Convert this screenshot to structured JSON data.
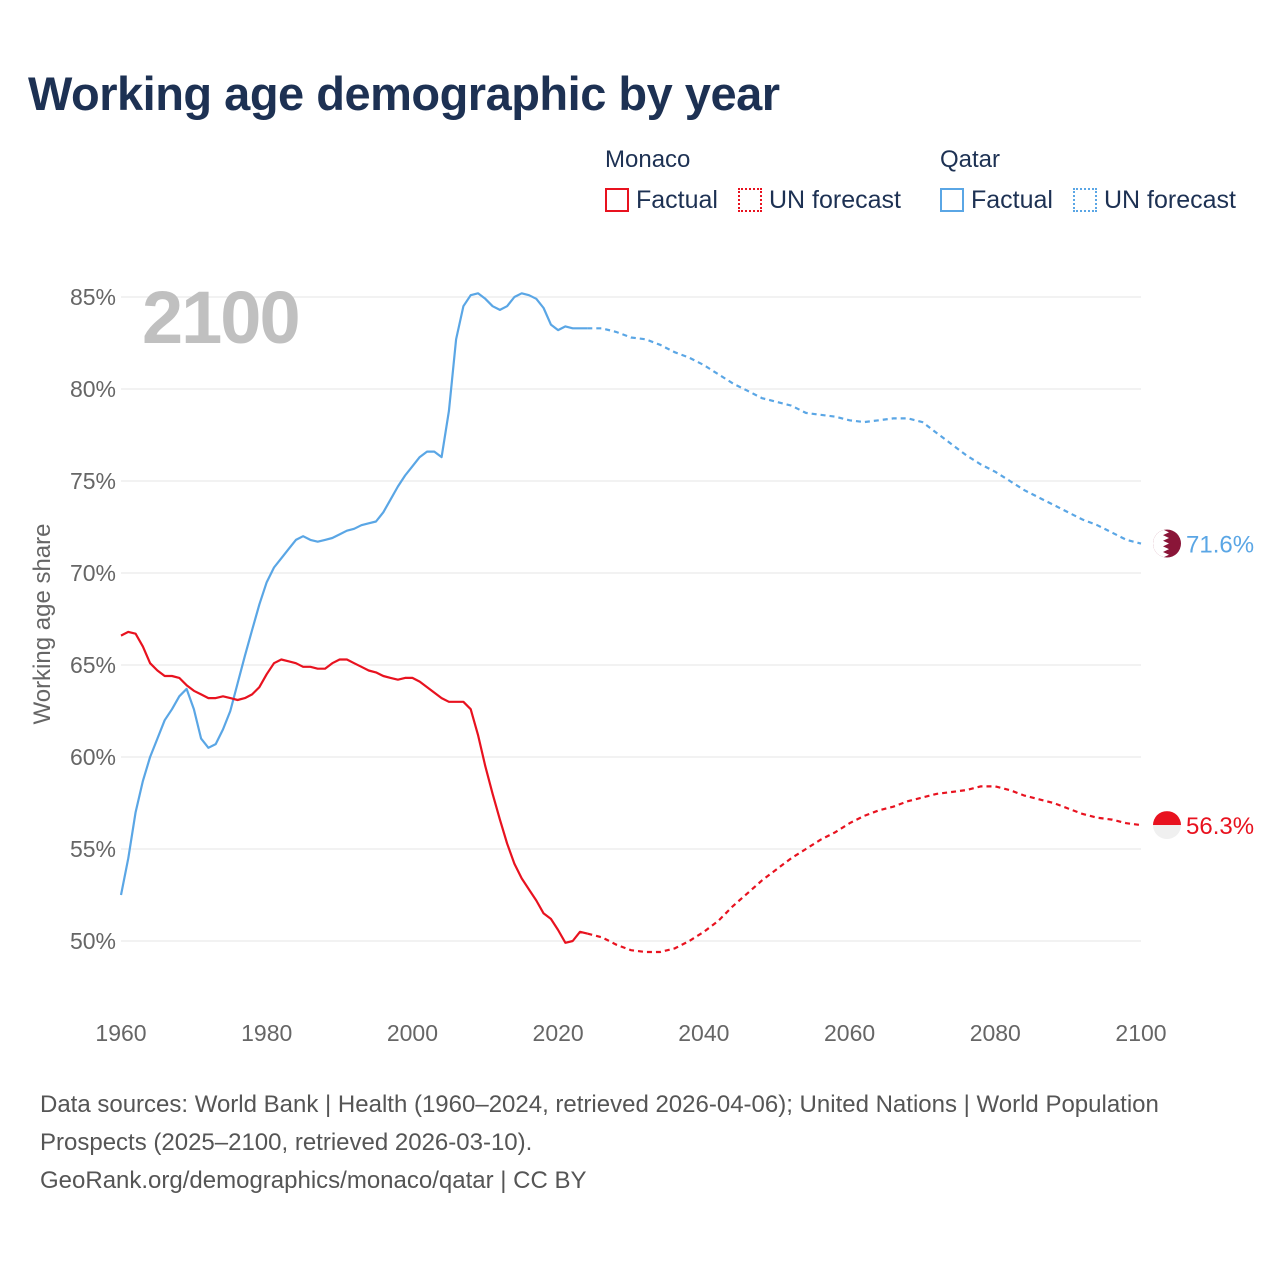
{
  "title": "Working age demographic by year",
  "year_watermark": "2100",
  "legend": {
    "groups": [
      {
        "name": "Monaco",
        "color": "#e8121f",
        "items": [
          "Factual",
          "UN forecast"
        ]
      },
      {
        "name": "Qatar",
        "color": "#5aa6e5",
        "items": [
          "Factual",
          "UN forecast"
        ]
      }
    ]
  },
  "footer": {
    "sources": "Data sources: World Bank | Health (1960–2024, retrieved 2026-04-06); United Nations | World Population Prospects (2025–2100, retrieved 2026-03-10).",
    "credit": "GeoRank.org/demographics/monaco/qatar | CC BY"
  },
  "chart_data": {
    "type": "line",
    "title": "Working age demographic by year",
    "xlabel": "",
    "ylabel": "Working age share",
    "xlim": [
      1960,
      2100
    ],
    "ylim": [
      48,
      86
    ],
    "x_ticks": [
      1960,
      1980,
      2000,
      2020,
      2040,
      2060,
      2080,
      2100
    ],
    "y_ticks": [
      50,
      55,
      60,
      65,
      70,
      75,
      80,
      85
    ],
    "y_tick_labels": [
      "50%",
      "55%",
      "60%",
      "65%",
      "70%",
      "75%",
      "80%",
      "85%"
    ],
    "grid": true,
    "series": [
      {
        "name": "Qatar",
        "color": "#5aa6e5",
        "end_label": "71.6%",
        "factual": [
          [
            1960,
            52.5
          ],
          [
            1961,
            54.5
          ],
          [
            1962,
            57.0
          ],
          [
            1963,
            58.7
          ],
          [
            1964,
            60.0
          ],
          [
            1965,
            61.0
          ],
          [
            1966,
            62.0
          ],
          [
            1967,
            62.6
          ],
          [
            1968,
            63.3
          ],
          [
            1969,
            63.7
          ],
          [
            1970,
            62.6
          ],
          [
            1971,
            61.0
          ],
          [
            1972,
            60.5
          ],
          [
            1973,
            60.7
          ],
          [
            1974,
            61.5
          ],
          [
            1975,
            62.5
          ],
          [
            1976,
            64.0
          ],
          [
            1977,
            65.5
          ],
          [
            1978,
            66.9
          ],
          [
            1979,
            68.3
          ],
          [
            1980,
            69.5
          ],
          [
            1981,
            70.3
          ],
          [
            1982,
            70.8
          ],
          [
            1983,
            71.3
          ],
          [
            1984,
            71.8
          ],
          [
            1985,
            72.0
          ],
          [
            1986,
            71.8
          ],
          [
            1987,
            71.7
          ],
          [
            1988,
            71.8
          ],
          [
            1989,
            71.9
          ],
          [
            1990,
            72.1
          ],
          [
            1991,
            72.3
          ],
          [
            1992,
            72.4
          ],
          [
            1993,
            72.6
          ],
          [
            1994,
            72.7
          ],
          [
            1995,
            72.8
          ],
          [
            1996,
            73.3
          ],
          [
            1997,
            74.0
          ],
          [
            1998,
            74.7
          ],
          [
            1999,
            75.3
          ],
          [
            2000,
            75.8
          ],
          [
            2001,
            76.3
          ],
          [
            2002,
            76.6
          ],
          [
            2003,
            76.6
          ],
          [
            2004,
            76.3
          ],
          [
            2005,
            78.8
          ],
          [
            2006,
            82.7
          ],
          [
            2007,
            84.5
          ],
          [
            2008,
            85.1
          ],
          [
            2009,
            85.2
          ],
          [
            2010,
            84.9
          ],
          [
            2011,
            84.5
          ],
          [
            2012,
            84.3
          ],
          [
            2013,
            84.5
          ],
          [
            2014,
            85.0
          ],
          [
            2015,
            85.2
          ],
          [
            2016,
            85.1
          ],
          [
            2017,
            84.9
          ],
          [
            2018,
            84.4
          ],
          [
            2019,
            83.5
          ],
          [
            2020,
            83.2
          ],
          [
            2021,
            83.4
          ],
          [
            2022,
            83.3
          ],
          [
            2023,
            83.3
          ],
          [
            2024,
            83.3
          ]
        ],
        "forecast": [
          [
            2024,
            83.3
          ],
          [
            2026,
            83.3
          ],
          [
            2028,
            83.1
          ],
          [
            2030,
            82.8
          ],
          [
            2032,
            82.7
          ],
          [
            2034,
            82.4
          ],
          [
            2036,
            82.0
          ],
          [
            2038,
            81.7
          ],
          [
            2040,
            81.3
          ],
          [
            2042,
            80.8
          ],
          [
            2044,
            80.3
          ],
          [
            2046,
            79.9
          ],
          [
            2048,
            79.5
          ],
          [
            2050,
            79.3
          ],
          [
            2052,
            79.1
          ],
          [
            2054,
            78.7
          ],
          [
            2056,
            78.6
          ],
          [
            2058,
            78.5
          ],
          [
            2060,
            78.3
          ],
          [
            2062,
            78.2
          ],
          [
            2064,
            78.3
          ],
          [
            2066,
            78.4
          ],
          [
            2068,
            78.4
          ],
          [
            2070,
            78.2
          ],
          [
            2072,
            77.6
          ],
          [
            2074,
            77.0
          ],
          [
            2076,
            76.4
          ],
          [
            2078,
            75.9
          ],
          [
            2080,
            75.5
          ],
          [
            2082,
            75.0
          ],
          [
            2084,
            74.5
          ],
          [
            2086,
            74.1
          ],
          [
            2088,
            73.7
          ],
          [
            2090,
            73.3
          ],
          [
            2092,
            72.9
          ],
          [
            2094,
            72.6
          ],
          [
            2096,
            72.2
          ],
          [
            2098,
            71.8
          ],
          [
            2100,
            71.6
          ]
        ]
      },
      {
        "name": "Monaco",
        "color": "#e8121f",
        "end_label": "56.3%",
        "factual": [
          [
            1960,
            66.6
          ],
          [
            1961,
            66.8
          ],
          [
            1962,
            66.7
          ],
          [
            1963,
            66.0
          ],
          [
            1964,
            65.1
          ],
          [
            1965,
            64.7
          ],
          [
            1966,
            64.4
          ],
          [
            1967,
            64.4
          ],
          [
            1968,
            64.3
          ],
          [
            1969,
            63.9
          ],
          [
            1970,
            63.6
          ],
          [
            1971,
            63.4
          ],
          [
            1972,
            63.2
          ],
          [
            1973,
            63.2
          ],
          [
            1974,
            63.3
          ],
          [
            1975,
            63.2
          ],
          [
            1976,
            63.1
          ],
          [
            1977,
            63.2
          ],
          [
            1978,
            63.4
          ],
          [
            1979,
            63.8
          ],
          [
            1980,
            64.5
          ],
          [
            1981,
            65.1
          ],
          [
            1982,
            65.3
          ],
          [
            1983,
            65.2
          ],
          [
            1984,
            65.1
          ],
          [
            1985,
            64.9
          ],
          [
            1986,
            64.9
          ],
          [
            1987,
            64.8
          ],
          [
            1988,
            64.8
          ],
          [
            1989,
            65.1
          ],
          [
            1990,
            65.3
          ],
          [
            1991,
            65.3
          ],
          [
            1992,
            65.1
          ],
          [
            1993,
            64.9
          ],
          [
            1994,
            64.7
          ],
          [
            1995,
            64.6
          ],
          [
            1996,
            64.4
          ],
          [
            1997,
            64.3
          ],
          [
            1998,
            64.2
          ],
          [
            1999,
            64.3
          ],
          [
            2000,
            64.3
          ],
          [
            2001,
            64.1
          ],
          [
            2002,
            63.8
          ],
          [
            2003,
            63.5
          ],
          [
            2004,
            63.2
          ],
          [
            2005,
            63.0
          ],
          [
            2006,
            63.0
          ],
          [
            2007,
            63.0
          ],
          [
            2008,
            62.6
          ],
          [
            2009,
            61.2
          ],
          [
            2010,
            59.5
          ],
          [
            2011,
            58.0
          ],
          [
            2012,
            56.6
          ],
          [
            2013,
            55.3
          ],
          [
            2014,
            54.2
          ],
          [
            2015,
            53.4
          ],
          [
            2016,
            52.8
          ],
          [
            2017,
            52.2
          ],
          [
            2018,
            51.5
          ],
          [
            2019,
            51.2
          ],
          [
            2020,
            50.6
          ],
          [
            2021,
            49.9
          ],
          [
            2022,
            50.0
          ],
          [
            2023,
            50.5
          ],
          [
            2024,
            50.4
          ]
        ],
        "forecast": [
          [
            2024,
            50.4
          ],
          [
            2026,
            50.2
          ],
          [
            2028,
            49.8
          ],
          [
            2030,
            49.5
          ],
          [
            2032,
            49.4
          ],
          [
            2034,
            49.4
          ],
          [
            2036,
            49.6
          ],
          [
            2038,
            50.0
          ],
          [
            2040,
            50.5
          ],
          [
            2042,
            51.1
          ],
          [
            2044,
            51.9
          ],
          [
            2046,
            52.6
          ],
          [
            2048,
            53.3
          ],
          [
            2050,
            53.9
          ],
          [
            2052,
            54.5
          ],
          [
            2054,
            55.0
          ],
          [
            2056,
            55.5
          ],
          [
            2058,
            55.9
          ],
          [
            2060,
            56.4
          ],
          [
            2062,
            56.8
          ],
          [
            2064,
            57.1
          ],
          [
            2066,
            57.3
          ],
          [
            2068,
            57.6
          ],
          [
            2070,
            57.8
          ],
          [
            2072,
            58.0
          ],
          [
            2074,
            58.1
          ],
          [
            2076,
            58.2
          ],
          [
            2078,
            58.4
          ],
          [
            2080,
            58.4
          ],
          [
            2082,
            58.2
          ],
          [
            2084,
            57.9
          ],
          [
            2086,
            57.7
          ],
          [
            2088,
            57.5
          ],
          [
            2090,
            57.2
          ],
          [
            2092,
            56.9
          ],
          [
            2094,
            56.7
          ],
          [
            2096,
            56.6
          ],
          [
            2098,
            56.4
          ],
          [
            2100,
            56.3
          ]
        ]
      }
    ]
  }
}
